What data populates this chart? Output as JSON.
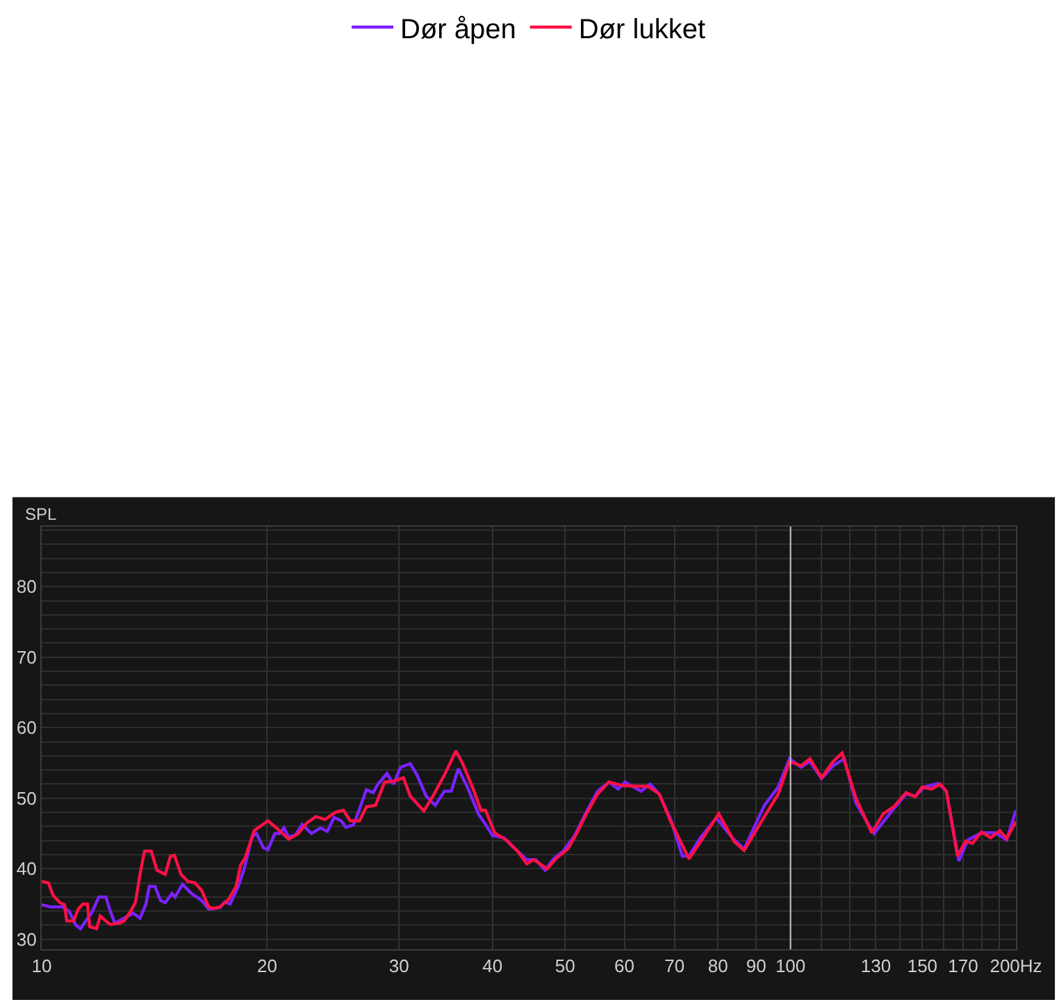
{
  "chart_data": {
    "type": "line",
    "ylabel": "SPL",
    "log": "x",
    "grid": true,
    "legend": "top",
    "marker": "none",
    "line_style": "solid",
    "xlim": [
      10,
      200
    ],
    "ylim": [
      28.6,
      88.5
    ],
    "xticks": [
      10,
      20,
      30,
      40,
      50,
      60,
      70,
      80,
      90,
      100,
      {
        "value": 110,
        "label": null
      },
      {
        "value": 120,
        "label": null
      },
      130,
      {
        "value": 140,
        "label": null
      },
      150,
      {
        "value": 160,
        "label": null
      },
      170,
      {
        "value": 180,
        "label": null
      },
      {
        "value": 190,
        "label": null
      },
      {
        "value": 200,
        "label": "200Hz"
      }
    ],
    "yticks": [
      30,
      {
        "value": 32,
        "label": null
      },
      {
        "value": 34,
        "label": null
      },
      {
        "value": 36,
        "label": null
      },
      {
        "value": 38,
        "label": null
      },
      40,
      {
        "value": 42,
        "label": null
      },
      {
        "value": 44,
        "label": null
      },
      {
        "value": 46,
        "label": null
      },
      {
        "value": 48,
        "label": null
      },
      50,
      {
        "value": 52,
        "label": null
      },
      {
        "value": 54,
        "label": null
      },
      {
        "value": 56,
        "label": null
      },
      {
        "value": 58,
        "label": null
      },
      60,
      {
        "value": 62,
        "label": null
      },
      {
        "value": 64,
        "label": null
      },
      {
        "value": 66,
        "label": null
      },
      {
        "value": 68,
        "label": null
      },
      70,
      {
        "value": 72,
        "label": null
      },
      {
        "value": 74,
        "label": null
      },
      {
        "value": 76,
        "label": null
      },
      {
        "value": 78,
        "label": null
      },
      80,
      {
        "value": 82,
        "label": null
      },
      {
        "value": 84,
        "label": null
      },
      {
        "value": 86,
        "label": null
      },
      {
        "value": 88,
        "label": null
      }
    ],
    "ref_lines": [
      {
        "axis": "x",
        "value": 100,
        "color": "#c8c8c8"
      }
    ],
    "series": [
      {
        "name": "Dør åpen",
        "color": "#7a22ff",
        "x": [
          10,
          10.28,
          10.65,
          10.88,
          11.11,
          11.27,
          11.43,
          11.67,
          11.92,
          12.18,
          12.35,
          12.52,
          12.88,
          13.25,
          13.53,
          13.78,
          13.92,
          14.17,
          14.41,
          14.62,
          14.93,
          15.07,
          15.42,
          15.85,
          16.36,
          16.71,
          17.3,
          17.55,
          17.85,
          18.3,
          18.64,
          19.09,
          19.36,
          19.77,
          20.05,
          20.48,
          20.78,
          21.07,
          21.37,
          21.82,
          22.28,
          22.92,
          23.57,
          24.07,
          24.58,
          25.12,
          25.47,
          26.07,
          26.37,
          27.14,
          27.72,
          28.12,
          28.91,
          29.51,
          30.14,
          31.06,
          31.71,
          32.62,
          33.54,
          34.5,
          35.24,
          36.0,
          37.02,
          38.34,
          39.15,
          40.0,
          41.42,
          42.9,
          44.44,
          45.7,
          47.0,
          48.35,
          49.72,
          51.5,
          53.34,
          55.25,
          57.23,
          58.86,
          60.12,
          63.15,
          64.95,
          66.8,
          69.2,
          71.7,
          73.2,
          75.8,
          79.6,
          83.6,
          86.7,
          92.3,
          96.3,
          99.7,
          103.3,
          106.2,
          110.0,
          114.0,
          118.0,
          122.3,
          129.3,
          136.8,
          142.7,
          146.8,
          151.0,
          157.5,
          161.5,
          167.8,
          172.6,
          179.9,
          187.7,
          194.4,
          200.0
        ],
        "values": [
          34.9,
          34.6,
          34.6,
          34.0,
          32.0,
          31.5,
          32.5,
          33.8,
          36.0,
          36.0,
          34.0,
          32.3,
          33.0,
          33.7,
          33.0,
          35.0,
          37.5,
          37.5,
          35.5,
          35.2,
          36.5,
          36.0,
          37.8,
          36.5,
          35.5,
          34.3,
          34.5,
          35.3,
          35.0,
          37.5,
          40.0,
          44.5,
          45.0,
          43.0,
          42.7,
          45.0,
          45.0,
          45.8,
          44.5,
          44.8,
          46.3,
          45.0,
          45.8,
          45.3,
          47.3,
          46.8,
          45.9,
          46.2,
          47.5,
          51.2,
          50.8,
          52.0,
          53.5,
          52.0,
          54.4,
          54.9,
          53.3,
          50.3,
          49.0,
          51.0,
          51.0,
          54.2,
          51.6,
          47.7,
          46.3,
          44.7,
          44.4,
          42.8,
          41.3,
          41.3,
          39.8,
          41.5,
          42.5,
          44.7,
          48.0,
          51.0,
          52.3,
          51.3,
          52.3,
          51.0,
          52.0,
          50.6,
          47.0,
          41.8,
          41.8,
          44.4,
          47.2,
          44.4,
          42.8,
          49.0,
          51.6,
          55.6,
          54.4,
          55.2,
          52.8,
          54.6,
          55.6,
          49.3,
          45.0,
          48.3,
          50.6,
          50.3,
          51.6,
          52.1,
          51.0,
          41.1,
          44.1,
          45.1,
          45.1,
          44.1,
          48.3
        ]
      },
      {
        "name": "Dør lukket",
        "color": "#ff1044",
        "x": [
          10,
          10.21,
          10.36,
          10.58,
          10.73,
          10.8,
          11.03,
          11.19,
          11.35,
          11.51,
          11.59,
          11.84,
          11.97,
          12.18,
          12.35,
          12.7,
          12.88,
          13.15,
          13.34,
          13.53,
          13.72,
          14.01,
          14.25,
          14.62,
          14.86,
          15.04,
          15.35,
          15.68,
          16.02,
          16.36,
          16.71,
          16.94,
          17.3,
          17.75,
          18.18,
          18.43,
          18.69,
          19.22,
          20.05,
          20.63,
          21.37,
          21.97,
          22.6,
          23.24,
          23.9,
          24.66,
          25.29,
          25.83,
          26.57,
          27.14,
          27.91,
          28.71,
          29.51,
          30.41,
          31.06,
          32.39,
          33.31,
          34.5,
          35.74,
          36.5,
          37.8,
          38.6,
          39.15,
          40.27,
          41.72,
          43.2,
          44.44,
          45.4,
          47.33,
          48.68,
          50.43,
          51.87,
          53.34,
          55.25,
          57.23,
          59.7,
          62.26,
          64.5,
          66.8,
          69.2,
          73.2,
          75.8,
          80.2,
          84.2,
          86.7,
          92.3,
          96.3,
          99.7,
          103.3,
          106.2,
          110.0,
          114.0,
          117.2,
          122.3,
          128.4,
          133.0,
          137.7,
          142.7,
          146.8,
          149.9,
          154.2,
          158.6,
          161.5,
          167.1,
          171.3,
          175.0,
          179.9,
          185.1,
          190.4,
          194.4,
          200.0
        ],
        "values": [
          38.2,
          38.0,
          36.2,
          35.2,
          34.9,
          32.6,
          32.6,
          34.3,
          35.0,
          35.0,
          31.8,
          31.5,
          33.3,
          32.6,
          32.1,
          32.3,
          32.6,
          34.0,
          35.2,
          39.2,
          42.5,
          42.5,
          39.8,
          39.2,
          41.8,
          41.9,
          39.2,
          38.2,
          38.0,
          36.9,
          34.6,
          34.4,
          34.6,
          35.6,
          37.5,
          40.5,
          41.5,
          45.4,
          46.8,
          45.7,
          44.2,
          44.9,
          46.5,
          47.4,
          47.0,
          48.0,
          48.3,
          46.8,
          46.8,
          48.8,
          49.0,
          52.3,
          52.4,
          52.9,
          50.3,
          48.2,
          50.3,
          53.3,
          56.7,
          54.9,
          51.0,
          48.3,
          48.3,
          45.1,
          44.1,
          42.5,
          40.7,
          41.3,
          40.0,
          41.5,
          42.8,
          45.1,
          47.7,
          50.6,
          52.3,
          51.8,
          51.7,
          51.7,
          50.6,
          46.7,
          41.4,
          43.8,
          47.8,
          43.8,
          42.6,
          47.4,
          50.6,
          55.2,
          54.6,
          55.6,
          52.9,
          55.2,
          56.4,
          50.0,
          45.1,
          47.8,
          48.9,
          50.8,
          50.2,
          51.6,
          51.3,
          52.0,
          51.0,
          41.8,
          43.9,
          43.6,
          45.2,
          44.4,
          45.4,
          44.3,
          46.7
        ]
      }
    ]
  }
}
